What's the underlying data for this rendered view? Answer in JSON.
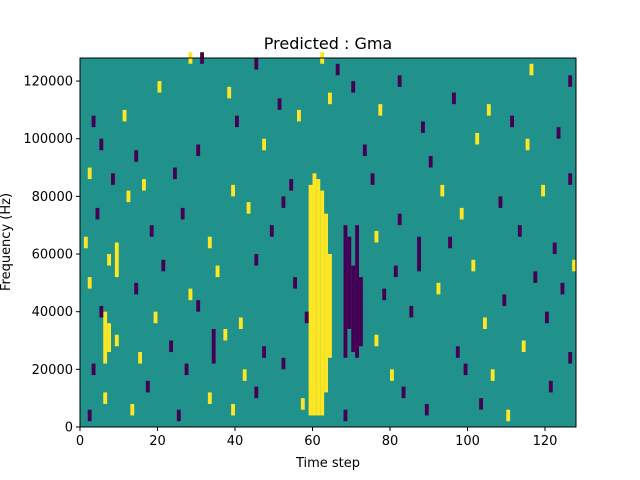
{
  "chart_data": {
    "type": "heatmap",
    "title": "Predicted : Gma",
    "xlabel": "Time step",
    "ylabel": "Frequency (Hz)",
    "xlim": [
      0,
      128
    ],
    "ylim": [
      0,
      128000
    ],
    "xticks": [
      0,
      20,
      40,
      60,
      80,
      100,
      120
    ],
    "yticks": [
      0,
      20000,
      40000,
      60000,
      80000,
      100000,
      120000
    ],
    "xtick_labels": [
      "0",
      "20",
      "40",
      "60",
      "80",
      "100",
      "120"
    ],
    "ytick_labels": [
      "0",
      "20000",
      "40000",
      "60000",
      "80000",
      "100000",
      "120000"
    ],
    "grid": false,
    "colormap": "viridis",
    "colors": {
      "low": "#440154",
      "mid": "#21918c",
      "high": "#fde725"
    },
    "background_value": "mid",
    "dense_columns": [
      {
        "x0": 59,
        "x1": 60,
        "y0": 4000,
        "y1": 84000,
        "value": "high"
      },
      {
        "x0": 60,
        "x1": 61,
        "y0": 4000,
        "y1": 88000,
        "value": "high"
      },
      {
        "x0": 61,
        "x1": 62,
        "y0": 4000,
        "y1": 86000,
        "value": "high"
      },
      {
        "x0": 62,
        "x1": 63,
        "y0": 4000,
        "y1": 82000,
        "value": "high"
      },
      {
        "x0": 63,
        "x1": 64,
        "y0": 12000,
        "y1": 74000,
        "value": "high"
      },
      {
        "x0": 64,
        "x1": 65,
        "y0": 24000,
        "y1": 60000,
        "value": "high"
      },
      {
        "x0": 68,
        "x1": 69,
        "y0": 24000,
        "y1": 70000,
        "value": "low"
      },
      {
        "x0": 69,
        "x1": 70,
        "y0": 34000,
        "y1": 66000,
        "value": "low"
      },
      {
        "x0": 70,
        "x1": 71,
        "y0": 26000,
        "y1": 56000,
        "value": "low"
      },
      {
        "x0": 71,
        "x1": 72,
        "y0": 24000,
        "y1": 70000,
        "value": "low"
      },
      {
        "x0": 72,
        "x1": 73,
        "y0": 28000,
        "y1": 52000,
        "value": "low"
      },
      {
        "x0": 6,
        "x1": 7,
        "y0": 22000,
        "y1": 40000,
        "value": "high"
      },
      {
        "x0": 7,
        "x1": 8,
        "y0": 26000,
        "y1": 36000,
        "value": "high"
      },
      {
        "x0": 9,
        "x1": 10,
        "y0": 52000,
        "y1": 64000,
        "value": "high"
      },
      {
        "x0": 34,
        "x1": 35,
        "y0": 22000,
        "y1": 34000,
        "value": "low"
      },
      {
        "x0": 87,
        "x1": 88,
        "y0": 54000,
        "y1": 66000,
        "value": "low"
      }
    ],
    "cells": [
      {
        "x": 28,
        "y": 126000,
        "value": "high"
      },
      {
        "x": 31,
        "y": 126000,
        "value": "low"
      },
      {
        "x": 45,
        "y": 124000,
        "value": "low"
      },
      {
        "x": 62,
        "y": 126000,
        "value": "high"
      },
      {
        "x": 66,
        "y": 122000,
        "value": "low"
      },
      {
        "x": 82,
        "y": 118000,
        "value": "low"
      },
      {
        "x": 116,
        "y": 122000,
        "value": "high"
      },
      {
        "x": 126,
        "y": 118000,
        "value": "low"
      },
      {
        "x": 20,
        "y": 116000,
        "value": "high"
      },
      {
        "x": 38,
        "y": 114000,
        "value": "high"
      },
      {
        "x": 51,
        "y": 110000,
        "value": "low"
      },
      {
        "x": 64,
        "y": 112000,
        "value": "high"
      },
      {
        "x": 70,
        "y": 116000,
        "value": "low"
      },
      {
        "x": 77,
        "y": 108000,
        "value": "high"
      },
      {
        "x": 96,
        "y": 112000,
        "value": "low"
      },
      {
        "x": 105,
        "y": 108000,
        "value": "high"
      },
      {
        "x": 111,
        "y": 104000,
        "value": "low"
      },
      {
        "x": 3,
        "y": 104000,
        "value": "low"
      },
      {
        "x": 11,
        "y": 106000,
        "value": "high"
      },
      {
        "x": 40,
        "y": 104000,
        "value": "low"
      },
      {
        "x": 56,
        "y": 106000,
        "value": "high"
      },
      {
        "x": 88,
        "y": 102000,
        "value": "low"
      },
      {
        "x": 102,
        "y": 98000,
        "value": "high"
      },
      {
        "x": 123,
        "y": 100000,
        "value": "low"
      },
      {
        "x": 5,
        "y": 96000,
        "value": "low"
      },
      {
        "x": 14,
        "y": 92000,
        "value": "low"
      },
      {
        "x": 30,
        "y": 94000,
        "value": "low"
      },
      {
        "x": 47,
        "y": 96000,
        "value": "high"
      },
      {
        "x": 73,
        "y": 94000,
        "value": "low"
      },
      {
        "x": 90,
        "y": 90000,
        "value": "low"
      },
      {
        "x": 115,
        "y": 96000,
        "value": "high"
      },
      {
        "x": 126,
        "y": 84000,
        "value": "low"
      },
      {
        "x": 2,
        "y": 86000,
        "value": "high"
      },
      {
        "x": 8,
        "y": 84000,
        "value": "low"
      },
      {
        "x": 16,
        "y": 82000,
        "value": "high"
      },
      {
        "x": 24,
        "y": 86000,
        "value": "low"
      },
      {
        "x": 39,
        "y": 80000,
        "value": "high"
      },
      {
        "x": 54,
        "y": 82000,
        "value": "low"
      },
      {
        "x": 75,
        "y": 84000,
        "value": "low"
      },
      {
        "x": 93,
        "y": 80000,
        "value": "high"
      },
      {
        "x": 108,
        "y": 76000,
        "value": "low"
      },
      {
        "x": 119,
        "y": 80000,
        "value": "high"
      },
      {
        "x": 4,
        "y": 72000,
        "value": "low"
      },
      {
        "x": 12,
        "y": 78000,
        "value": "high"
      },
      {
        "x": 26,
        "y": 72000,
        "value": "low"
      },
      {
        "x": 43,
        "y": 74000,
        "value": "high"
      },
      {
        "x": 52,
        "y": 76000,
        "value": "low"
      },
      {
        "x": 82,
        "y": 70000,
        "value": "low"
      },
      {
        "x": 98,
        "y": 72000,
        "value": "high"
      },
      {
        "x": 113,
        "y": 66000,
        "value": "low"
      },
      {
        "x": 1,
        "y": 62000,
        "value": "high"
      },
      {
        "x": 18,
        "y": 66000,
        "value": "low"
      },
      {
        "x": 33,
        "y": 62000,
        "value": "high"
      },
      {
        "x": 49,
        "y": 66000,
        "value": "low"
      },
      {
        "x": 76,
        "y": 64000,
        "value": "high"
      },
      {
        "x": 95,
        "y": 62000,
        "value": "low"
      },
      {
        "x": 122,
        "y": 60000,
        "value": "low"
      },
      {
        "x": 7,
        "y": 56000,
        "value": "high"
      },
      {
        "x": 21,
        "y": 54000,
        "value": "low"
      },
      {
        "x": 35,
        "y": 52000,
        "value": "high"
      },
      {
        "x": 45,
        "y": 56000,
        "value": "low"
      },
      {
        "x": 81,
        "y": 52000,
        "value": "low"
      },
      {
        "x": 101,
        "y": 54000,
        "value": "high"
      },
      {
        "x": 117,
        "y": 50000,
        "value": "low"
      },
      {
        "x": 127,
        "y": 54000,
        "value": "high"
      },
      {
        "x": 2,
        "y": 48000,
        "value": "high"
      },
      {
        "x": 14,
        "y": 46000,
        "value": "low"
      },
      {
        "x": 28,
        "y": 44000,
        "value": "high"
      },
      {
        "x": 55,
        "y": 48000,
        "value": "low"
      },
      {
        "x": 78,
        "y": 44000,
        "value": "low"
      },
      {
        "x": 92,
        "y": 46000,
        "value": "high"
      },
      {
        "x": 109,
        "y": 42000,
        "value": "low"
      },
      {
        "x": 124,
        "y": 46000,
        "value": "low"
      },
      {
        "x": 5,
        "y": 38000,
        "value": "low"
      },
      {
        "x": 19,
        "y": 36000,
        "value": "high"
      },
      {
        "x": 30,
        "y": 40000,
        "value": "low"
      },
      {
        "x": 41,
        "y": 34000,
        "value": "high"
      },
      {
        "x": 58,
        "y": 36000,
        "value": "low"
      },
      {
        "x": 85,
        "y": 38000,
        "value": "low"
      },
      {
        "x": 104,
        "y": 34000,
        "value": "high"
      },
      {
        "x": 120,
        "y": 36000,
        "value": "low"
      },
      {
        "x": 9,
        "y": 28000,
        "value": "high"
      },
      {
        "x": 23,
        "y": 26000,
        "value": "low"
      },
      {
        "x": 37,
        "y": 30000,
        "value": "high"
      },
      {
        "x": 47,
        "y": 24000,
        "value": "low"
      },
      {
        "x": 76,
        "y": 28000,
        "value": "high"
      },
      {
        "x": 97,
        "y": 24000,
        "value": "low"
      },
      {
        "x": 114,
        "y": 26000,
        "value": "high"
      },
      {
        "x": 3,
        "y": 18000,
        "value": "low"
      },
      {
        "x": 15,
        "y": 22000,
        "value": "high"
      },
      {
        "x": 27,
        "y": 18000,
        "value": "low"
      },
      {
        "x": 42,
        "y": 16000,
        "value": "high"
      },
      {
        "x": 52,
        "y": 20000,
        "value": "low"
      },
      {
        "x": 80,
        "y": 16000,
        "value": "high"
      },
      {
        "x": 99,
        "y": 18000,
        "value": "low"
      },
      {
        "x": 106,
        "y": 16000,
        "value": "high"
      },
      {
        "x": 126,
        "y": 22000,
        "value": "low"
      },
      {
        "x": 6,
        "y": 8000,
        "value": "high"
      },
      {
        "x": 17,
        "y": 12000,
        "value": "low"
      },
      {
        "x": 33,
        "y": 8000,
        "value": "high"
      },
      {
        "x": 45,
        "y": 10000,
        "value": "low"
      },
      {
        "x": 57,
        "y": 6000,
        "value": "high"
      },
      {
        "x": 83,
        "y": 10000,
        "value": "low"
      },
      {
        "x": 103,
        "y": 6000,
        "value": "low"
      },
      {
        "x": 121,
        "y": 12000,
        "value": "low"
      },
      {
        "x": 2,
        "y": 2000,
        "value": "low"
      },
      {
        "x": 13,
        "y": 4000,
        "value": "high"
      },
      {
        "x": 25,
        "y": 2000,
        "value": "low"
      },
      {
        "x": 39,
        "y": 4000,
        "value": "high"
      },
      {
        "x": 68,
        "y": 2000,
        "value": "low"
      },
      {
        "x": 89,
        "y": 4000,
        "value": "low"
      },
      {
        "x": 110,
        "y": 2000,
        "value": "high"
      }
    ]
  }
}
